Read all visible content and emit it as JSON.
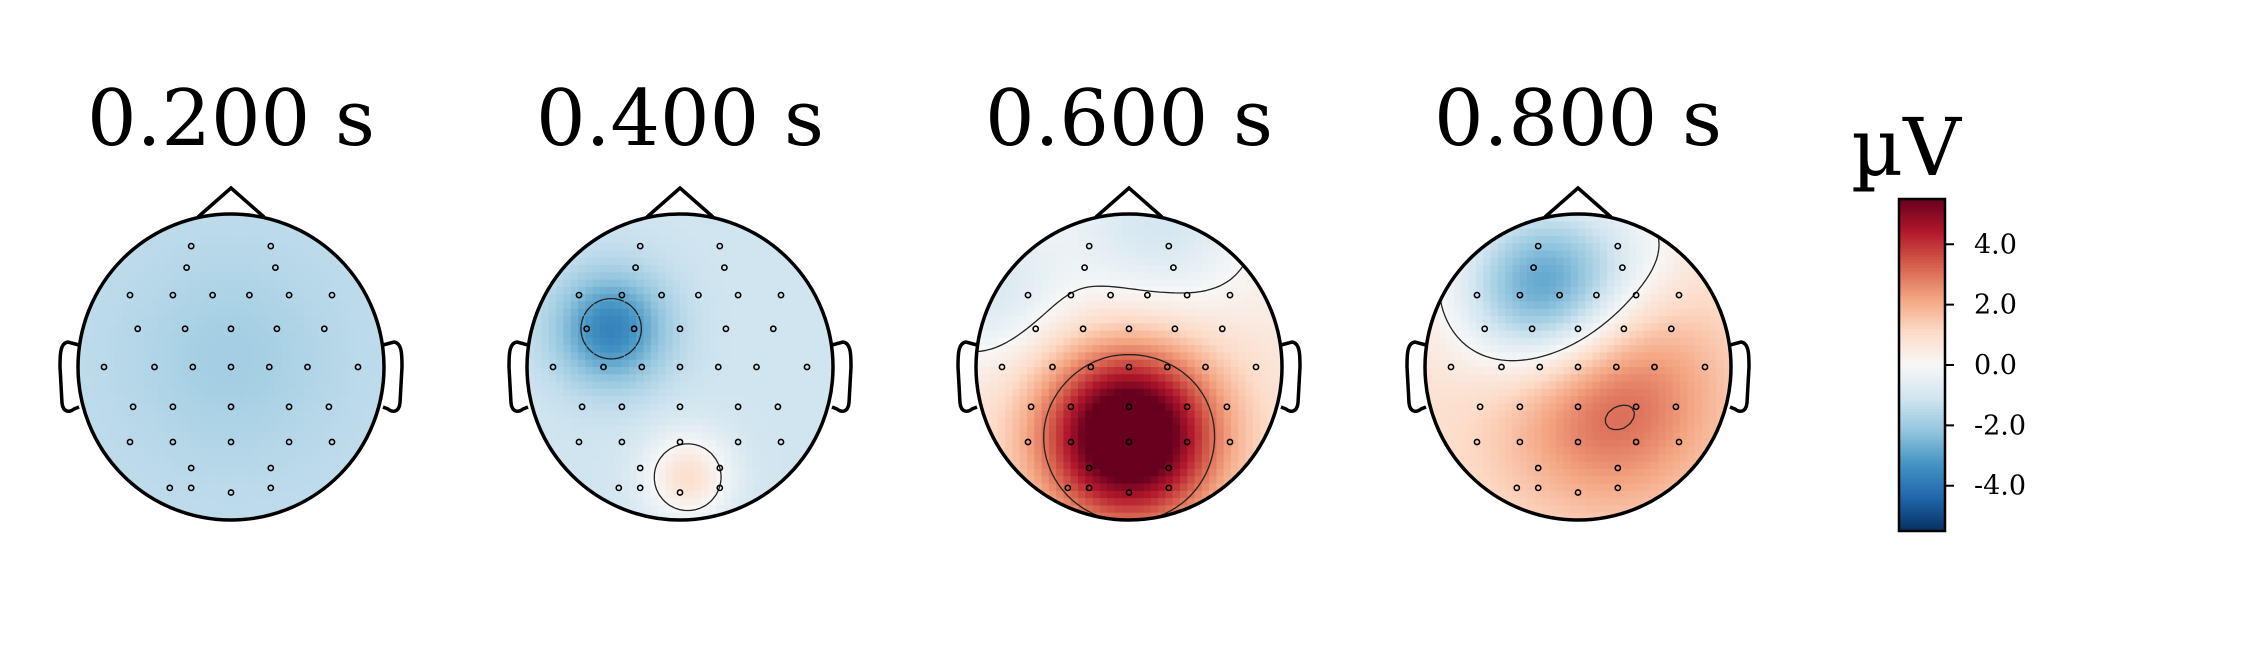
{
  "chart_data": {
    "type": "heatmap",
    "kind": "eeg-topomap-series",
    "colormap": "RdBu_r",
    "vlim": [
      -5.5,
      5.5
    ],
    "contour_levels": [
      -3.0,
      0.0,
      3.0
    ],
    "colorbar": {
      "unit": "µV",
      "ticks": [
        4.0,
        2.0,
        0.0,
        -2.0,
        -4.0
      ],
      "tick_labels": [
        "4.0",
        "2.0",
        "0.0",
        "-2.0",
        "-4.0"
      ]
    },
    "maps": [
      {
        "title": "0.200 s",
        "time_s": 0.2,
        "baseline": -1.4,
        "blobs": [
          {
            "x": 0.0,
            "y": 0.05,
            "amp": -0.5,
            "s": 0.45
          }
        ]
      },
      {
        "title": "0.400 s",
        "time_s": 0.4,
        "baseline": -1.1,
        "blobs": [
          {
            "x": -0.45,
            "y": 0.25,
            "amp": -2.6,
            "s": 0.25
          },
          {
            "x": 0.05,
            "y": -0.72,
            "amp": 2.0,
            "s": 0.2
          }
        ]
      },
      {
        "title": "0.600 s",
        "time_s": 0.6,
        "baseline": 0.6,
        "blobs": [
          {
            "x": 0.0,
            "y": -0.45,
            "amp": 6.4,
            "s": 0.4
          },
          {
            "x": 0.2,
            "y": 0.95,
            "amp": -1.6,
            "s": 0.45
          },
          {
            "x": -0.9,
            "y": 0.5,
            "amp": -1.4,
            "s": 0.35
          }
        ]
      },
      {
        "title": "0.800 s",
        "time_s": 0.8,
        "baseline": 0.8,
        "blobs": [
          {
            "x": 0.2,
            "y": -0.2,
            "amp": 2.6,
            "s": 0.5
          },
          {
            "x": -0.2,
            "y": 0.5,
            "amp": -4.2,
            "s": 0.4
          },
          {
            "x": 0.45,
            "y": 0.8,
            "amp": -0.5,
            "s": 0.3
          }
        ]
      }
    ],
    "sensors": [
      [
        -0.26,
        0.79
      ],
      [
        0.26,
        0.79
      ],
      [
        -0.29,
        0.65
      ],
      [
        0.29,
        0.65
      ],
      [
        -0.66,
        0.47
      ],
      [
        -0.38,
        0.47
      ],
      [
        -0.12,
        0.47
      ],
      [
        0.12,
        0.47
      ],
      [
        0.38,
        0.47
      ],
      [
        0.66,
        0.47
      ],
      [
        -0.61,
        0.25
      ],
      [
        -0.3,
        0.25
      ],
      [
        0.0,
        0.25
      ],
      [
        0.3,
        0.25
      ],
      [
        0.61,
        0.25
      ],
      [
        -0.83,
        0.0
      ],
      [
        -0.5,
        0.0
      ],
      [
        -0.25,
        0.0
      ],
      [
        0.0,
        0.0
      ],
      [
        0.25,
        0.0
      ],
      [
        0.5,
        0.0
      ],
      [
        0.83,
        0.0
      ],
      [
        -0.64,
        -0.26
      ],
      [
        -0.38,
        -0.26
      ],
      [
        0.0,
        -0.26
      ],
      [
        0.38,
        -0.26
      ],
      [
        0.64,
        -0.26
      ],
      [
        -0.66,
        -0.49
      ],
      [
        -0.38,
        -0.49
      ],
      [
        0.0,
        -0.49
      ],
      [
        0.38,
        -0.49
      ],
      [
        0.66,
        -0.49
      ],
      [
        -0.26,
        -0.66
      ],
      [
        0.26,
        -0.66
      ],
      [
        -0.26,
        -0.79
      ],
      [
        0.26,
        -0.79
      ],
      [
        -0.4,
        -0.79
      ],
      [
        0.0,
        -0.82
      ]
    ]
  }
}
